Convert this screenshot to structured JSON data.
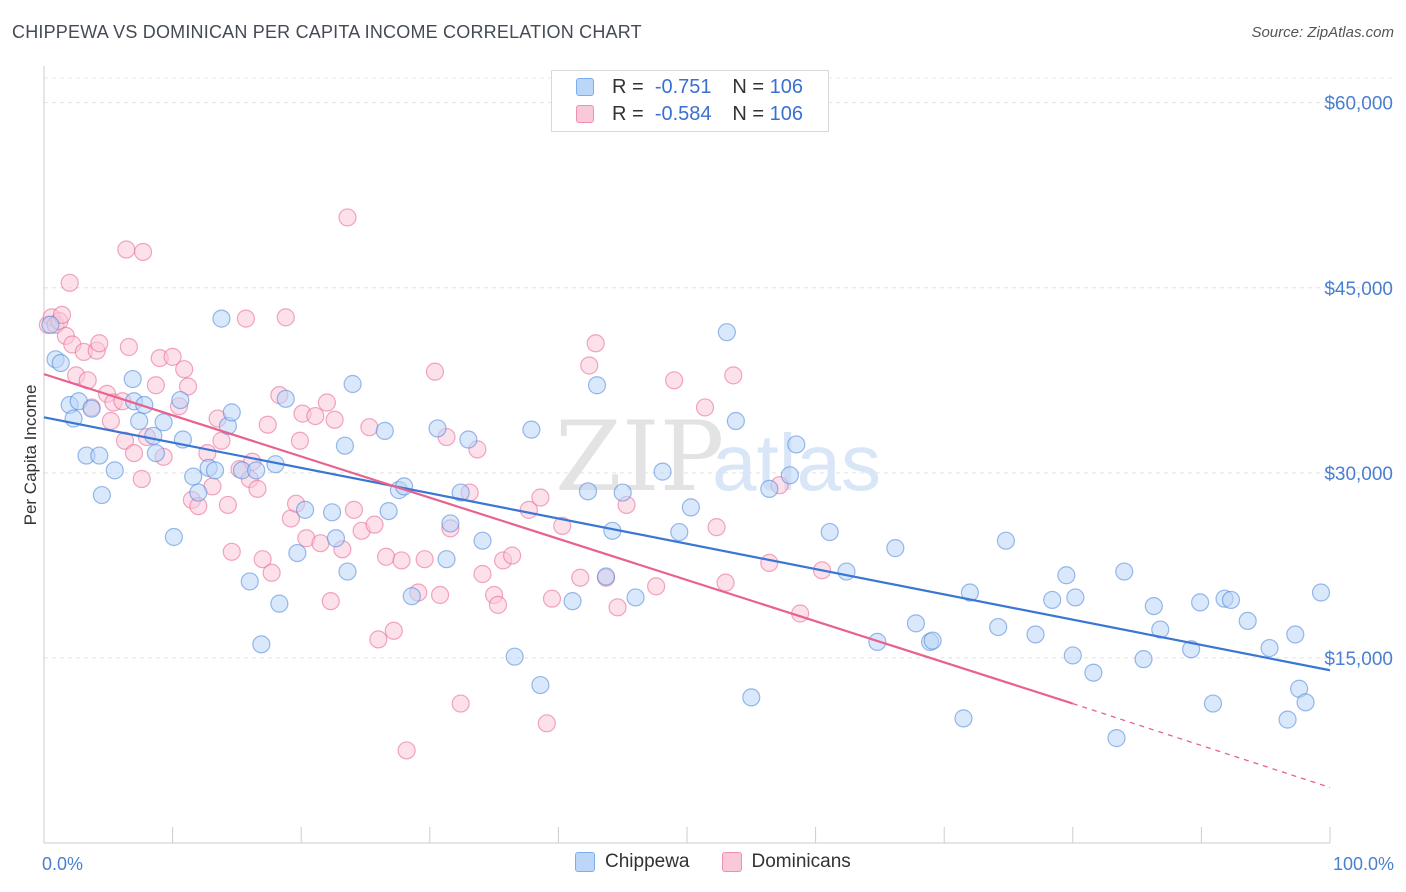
{
  "title": "CHIPPEWA VS DOMINICAN PER CAPITA INCOME CORRELATION CHART",
  "source": "Source: ZipAtlas.com",
  "watermark": {
    "zip": "ZIP",
    "atlas": "atlas"
  },
  "legend_top": [
    {
      "r_label": "R =",
      "r": "-0.751",
      "n_label": "N =",
      "n": "106",
      "color": "#7aaef0",
      "fill": "#bcd6f7"
    },
    {
      "r_label": "R =",
      "r": "-0.584",
      "n_label": "N =",
      "n": "106",
      "color": "#f08fb0",
      "fill": "#f9c9d9"
    }
  ],
  "legend_bottom": [
    {
      "label": "Chippewa",
      "color": "#7aaef0",
      "fill": "#bcd6f7"
    },
    {
      "label": "Dominicans",
      "color": "#f08fb0",
      "fill": "#f9c9d9"
    }
  ],
  "chart_data": {
    "type": "scatter",
    "title": "CHIPPEWA VS DOMINICAN PER CAPITA INCOME CORRELATION CHART",
    "xlabel": "",
    "ylabel": "Per Capita Income",
    "xlim": [
      0,
      100
    ],
    "ylim": [
      0,
      62000
    ],
    "x_tick_labels": [
      "0.0%",
      "100.0%"
    ],
    "y_ticks": [
      15000,
      30000,
      45000,
      60000
    ],
    "y_tick_labels": [
      "$15,000",
      "$30,000",
      "$45,000",
      "$60,000"
    ],
    "grid": true,
    "legend_position": "top-center",
    "series": [
      {
        "name": "Chippewa",
        "color": "#4a84d8",
        "marker_fill": "#bcd6f7",
        "trend": {
          "x": [
            0,
            100
          ],
          "y": [
            34500,
            14000
          ]
        },
        "points": [
          [
            0.5,
            42000
          ],
          [
            0.9,
            39200
          ],
          [
            1.3,
            38900
          ],
          [
            2.0,
            35500
          ],
          [
            2.3,
            34400
          ],
          [
            2.7,
            35800
          ],
          [
            3.3,
            31400
          ],
          [
            3.7,
            35200
          ],
          [
            4.5,
            28200
          ],
          [
            4.3,
            31400
          ],
          [
            5.5,
            30200
          ],
          [
            6.9,
            37600
          ],
          [
            7.0,
            35800
          ],
          [
            7.4,
            34200
          ],
          [
            7.8,
            35500
          ],
          [
            8.5,
            33000
          ],
          [
            8.7,
            31600
          ],
          [
            9.3,
            34100
          ],
          [
            10.1,
            24800
          ],
          [
            10.6,
            35900
          ],
          [
            10.8,
            32700
          ],
          [
            11.6,
            29700
          ],
          [
            12.0,
            28400
          ],
          [
            12.8,
            30400
          ],
          [
            13.3,
            30200
          ],
          [
            13.8,
            42500
          ],
          [
            14.3,
            33800
          ],
          [
            14.6,
            34900
          ],
          [
            15.4,
            30200
          ],
          [
            16.0,
            21200
          ],
          [
            16.5,
            30200
          ],
          [
            16.9,
            16100
          ],
          [
            18.0,
            30700
          ],
          [
            18.3,
            19400
          ],
          [
            18.8,
            36000
          ],
          [
            19.7,
            23500
          ],
          [
            20.3,
            27000
          ],
          [
            22.4,
            26800
          ],
          [
            22.7,
            24700
          ],
          [
            23.4,
            32200
          ],
          [
            23.6,
            22000
          ],
          [
            24.0,
            37200
          ],
          [
            26.5,
            33400
          ],
          [
            26.8,
            26900
          ],
          [
            27.6,
            28600
          ],
          [
            28.0,
            28900
          ],
          [
            28.6,
            20000
          ],
          [
            30.6,
            33600
          ],
          [
            31.3,
            23000
          ],
          [
            31.6,
            25900
          ],
          [
            32.4,
            28400
          ],
          [
            33.0,
            32700
          ],
          [
            34.1,
            24500
          ],
          [
            36.6,
            15100
          ],
          [
            37.9,
            33500
          ],
          [
            38.6,
            12800
          ],
          [
            41.1,
            19600
          ],
          [
            42.3,
            28500
          ],
          [
            43.0,
            37100
          ],
          [
            43.7,
            21600
          ],
          [
            44.2,
            25300
          ],
          [
            45.0,
            28400
          ],
          [
            46.0,
            19900
          ],
          [
            48.1,
            30100
          ],
          [
            49.4,
            25200
          ],
          [
            50.3,
            27200
          ],
          [
            53.1,
            41400
          ],
          [
            53.8,
            34200
          ],
          [
            55.0,
            11800
          ],
          [
            56.4,
            28700
          ],
          [
            58.0,
            29800
          ],
          [
            58.5,
            32300
          ],
          [
            61.1,
            25200
          ],
          [
            62.4,
            22000
          ],
          [
            64.8,
            16300
          ],
          [
            66.2,
            23900
          ],
          [
            67.8,
            17800
          ],
          [
            68.9,
            16300
          ],
          [
            69.1,
            16400
          ],
          [
            71.5,
            10100
          ],
          [
            72.0,
            20300
          ],
          [
            74.2,
            17500
          ],
          [
            74.8,
            24500
          ],
          [
            77.1,
            16900
          ],
          [
            78.4,
            19700
          ],
          [
            79.5,
            21700
          ],
          [
            80.0,
            15200
          ],
          [
            80.2,
            19900
          ],
          [
            81.6,
            13800
          ],
          [
            83.4,
            8500
          ],
          [
            84.0,
            22000
          ],
          [
            85.5,
            14900
          ],
          [
            86.3,
            19200
          ],
          [
            86.8,
            17300
          ],
          [
            89.2,
            15700
          ],
          [
            89.9,
            19500
          ],
          [
            90.9,
            11300
          ],
          [
            91.8,
            19800
          ],
          [
            92.3,
            19700
          ],
          [
            93.6,
            18000
          ],
          [
            95.3,
            15800
          ],
          [
            96.7,
            10000
          ],
          [
            97.3,
            16900
          ],
          [
            97.6,
            12500
          ],
          [
            98.1,
            11400
          ],
          [
            99.3,
            20300
          ]
        ]
      },
      {
        "name": "Dominicans",
        "color": "#e8628f",
        "marker_fill": "#f9c9d9",
        "trend": {
          "x": [
            0,
            80
          ],
          "y": [
            38000,
            11300
          ]
        },
        "trend_dashed": {
          "x": [
            80,
            100
          ],
          "y": [
            11300,
            4500
          ]
        },
        "points": [
          [
            0.3,
            42000
          ],
          [
            0.6,
            42600
          ],
          [
            0.9,
            42000
          ],
          [
            1.2,
            42300
          ],
          [
            1.4,
            42800
          ],
          [
            1.7,
            41100
          ],
          [
            2.0,
            45400
          ],
          [
            2.2,
            40400
          ],
          [
            2.5,
            37900
          ],
          [
            3.1,
            39800
          ],
          [
            3.4,
            37500
          ],
          [
            3.7,
            35300
          ],
          [
            4.1,
            39900
          ],
          [
            4.3,
            40500
          ],
          [
            4.9,
            36400
          ],
          [
            5.2,
            34200
          ],
          [
            5.4,
            35700
          ],
          [
            6.1,
            35800
          ],
          [
            6.3,
            32600
          ],
          [
            6.4,
            48100
          ],
          [
            6.6,
            40200
          ],
          [
            7.0,
            31600
          ],
          [
            7.6,
            29500
          ],
          [
            7.7,
            47900
          ],
          [
            8.0,
            32900
          ],
          [
            8.7,
            37100
          ],
          [
            9.0,
            39300
          ],
          [
            9.3,
            31300
          ],
          [
            10.0,
            39400
          ],
          [
            10.5,
            35400
          ],
          [
            10.9,
            38400
          ],
          [
            11.2,
            37000
          ],
          [
            11.5,
            27800
          ],
          [
            12.0,
            27300
          ],
          [
            12.7,
            31600
          ],
          [
            13.1,
            28900
          ],
          [
            13.5,
            34400
          ],
          [
            13.8,
            32600
          ],
          [
            14.3,
            27400
          ],
          [
            14.6,
            23600
          ],
          [
            15.2,
            30300
          ],
          [
            15.7,
            42500
          ],
          [
            16.0,
            29500
          ],
          [
            16.2,
            30900
          ],
          [
            16.6,
            28700
          ],
          [
            17.0,
            23000
          ],
          [
            17.4,
            33900
          ],
          [
            17.7,
            21900
          ],
          [
            18.3,
            36300
          ],
          [
            18.8,
            42600
          ],
          [
            19.2,
            26300
          ],
          [
            19.6,
            27500
          ],
          [
            19.9,
            32600
          ],
          [
            20.1,
            34800
          ],
          [
            20.4,
            24700
          ],
          [
            21.1,
            34600
          ],
          [
            21.5,
            24300
          ],
          [
            22.0,
            35700
          ],
          [
            22.3,
            19600
          ],
          [
            22.6,
            34300
          ],
          [
            23.2,
            23800
          ],
          [
            23.6,
            50700
          ],
          [
            24.1,
            27000
          ],
          [
            24.7,
            25300
          ],
          [
            25.3,
            33700
          ],
          [
            25.7,
            25800
          ],
          [
            26.0,
            16500
          ],
          [
            26.6,
            23200
          ],
          [
            27.2,
            17200
          ],
          [
            27.8,
            22900
          ],
          [
            28.2,
            7500
          ],
          [
            29.1,
            20300
          ],
          [
            29.6,
            23000
          ],
          [
            30.4,
            38200
          ],
          [
            30.8,
            20100
          ],
          [
            31.3,
            32900
          ],
          [
            31.6,
            25500
          ],
          [
            32.4,
            11300
          ],
          [
            33.1,
            28400
          ],
          [
            33.7,
            31900
          ],
          [
            34.1,
            21800
          ],
          [
            35.0,
            20100
          ],
          [
            35.3,
            19300
          ],
          [
            35.7,
            22900
          ],
          [
            36.4,
            23300
          ],
          [
            37.7,
            27000
          ],
          [
            38.6,
            28000
          ],
          [
            39.1,
            9700
          ],
          [
            39.5,
            19800
          ],
          [
            40.3,
            25700
          ],
          [
            41.7,
            21500
          ],
          [
            42.4,
            38700
          ],
          [
            42.9,
            40500
          ],
          [
            43.7,
            21500
          ],
          [
            44.6,
            19100
          ],
          [
            45.3,
            27400
          ],
          [
            47.6,
            20800
          ],
          [
            49.0,
            37500
          ],
          [
            51.4,
            35300
          ],
          [
            52.3,
            25600
          ],
          [
            53.0,
            21100
          ],
          [
            53.6,
            37900
          ],
          [
            56.4,
            22700
          ],
          [
            57.2,
            29000
          ],
          [
            58.8,
            18600
          ],
          [
            60.5,
            22100
          ]
        ]
      }
    ]
  }
}
